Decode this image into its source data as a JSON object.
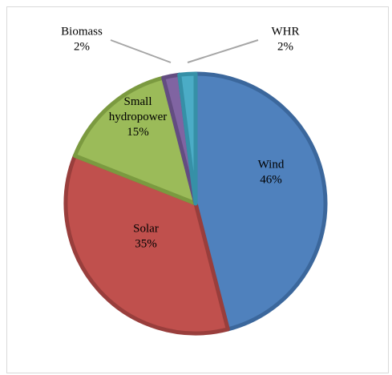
{
  "chart_data": {
    "type": "pie",
    "slices": [
      {
        "name": "Wind",
        "value": 46,
        "pct_label": "46%",
        "color": "#4f81bd",
        "border": "#3b679c"
      },
      {
        "name": "Solar",
        "value": 35,
        "pct_label": "35%",
        "color": "#c0504d",
        "border": "#993e3c"
      },
      {
        "name": "Small hydropower",
        "label_lines": [
          "Small",
          "hydropower"
        ],
        "value": 15,
        "pct_label": "15%",
        "color": "#9bbb59",
        "border": "#7b9a40"
      },
      {
        "name": "Biomass",
        "value": 2,
        "pct_label": "2%",
        "color": "#8064a2",
        "border": "#634d81"
      },
      {
        "name": "WHR",
        "value": 2,
        "pct_label": "2%",
        "color": "#4bacc6",
        "border": "#3690a7"
      }
    ],
    "legend": "none"
  }
}
